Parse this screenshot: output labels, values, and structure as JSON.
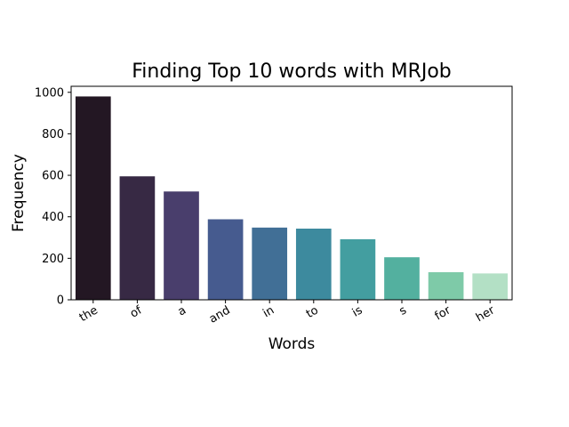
{
  "chart_data": {
    "type": "bar",
    "title": "Finding Top 10 words with MRJob",
    "xlabel": "Words",
    "ylabel": "Frequency",
    "categories": [
      "the",
      "of",
      "a",
      "and",
      "in",
      "to",
      "is",
      "s",
      "for",
      "her"
    ],
    "values": [
      980,
      595,
      522,
      388,
      348,
      343,
      292,
      205,
      133,
      127
    ],
    "ylim": [
      0,
      1029
    ],
    "yticks": [
      0,
      200,
      400,
      600,
      800,
      1000
    ],
    "grid": false,
    "legend": "none",
    "colors": [
      "#231723",
      "#372944",
      "#493e6c",
      "#465b8f",
      "#416f96",
      "#3d8a9e",
      "#439ea0",
      "#53b09f",
      "#7ecaa8",
      "#b3e0c5"
    ]
  }
}
